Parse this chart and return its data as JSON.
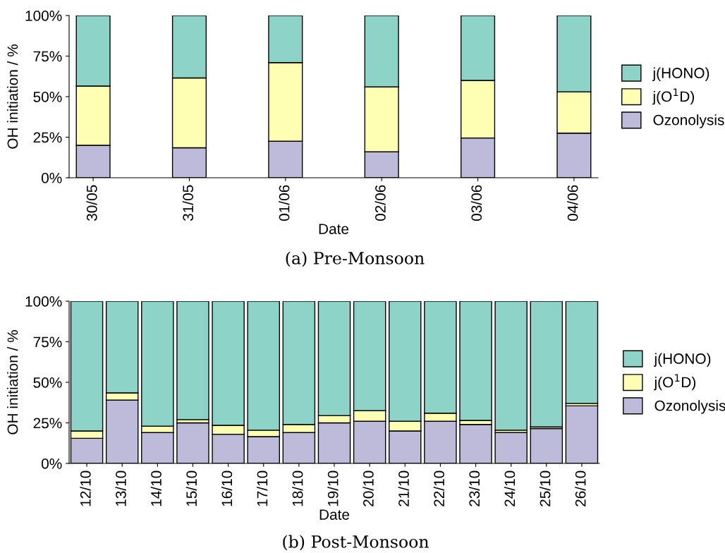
{
  "chart_data": [
    {
      "type": "bar",
      "stacked": true,
      "xlabel": "Date",
      "ylabel": "OH initiation / %",
      "categories": [
        "30/05",
        "31/05",
        "01/06",
        "02/06",
        "03/06",
        "04/06"
      ],
      "series": [
        {
          "name": "Ozonolysis",
          "color": "#bebada",
          "values": [
            20,
            18.5,
            22.5,
            16,
            24.5,
            27.5
          ]
        },
        {
          "name": "j(O$^{1}$D)",
          "color": "#ffffb3",
          "values": [
            36.5,
            43,
            48.5,
            40,
            35.5,
            25.5
          ]
        },
        {
          "name": "j(HONO)",
          "color": "#8dd3c7",
          "values": [
            43.5,
            38.5,
            29,
            44,
            40,
            47
          ]
        }
      ],
      "ylim": [
        0,
        100
      ],
      "yticks": [
        {
          "value": 0,
          "label": "0%"
        },
        {
          "value": 25,
          "label": "25%"
        },
        {
          "value": 50,
          "label": "50%"
        },
        {
          "value": 75,
          "label": "75%"
        },
        {
          "value": 100,
          "label": "100%"
        }
      ],
      "grid": false,
      "legend": "right",
      "annotations": [
        "(a) Pre-Monsoon"
      ]
    },
    {
      "type": "bar",
      "stacked": true,
      "xlabel": "Date",
      "ylabel": "OH initiation / %",
      "categories": [
        "12/10",
        "13/10",
        "14/10",
        "15/10",
        "16/10",
        "17/10",
        "18/10",
        "19/10",
        "20/10",
        "21/10",
        "22/10",
        "23/10",
        "24/10",
        "25/10",
        "26/10"
      ],
      "series": [
        {
          "name": "Ozonolysis",
          "color": "#bebada",
          "values": [
            15.5,
            39,
            19,
            25,
            18,
            16.5,
            19,
            25,
            26,
            20,
            26,
            24,
            19,
            21.5,
            35.5
          ]
        },
        {
          "name": "j(O$^{1}$D)",
          "color": "#ffffb3",
          "values": [
            4.5,
            4.5,
            4,
            2,
            5.5,
            4,
            5,
            4.5,
            6.5,
            6,
            5,
            2.5,
            1.5,
            1,
            1.5
          ]
        },
        {
          "name": "j(HONO)",
          "color": "#8dd3c7",
          "values": [
            80,
            56.5,
            77,
            73,
            76.5,
            79.5,
            76,
            70.5,
            67.5,
            74,
            69,
            73.5,
            79.5,
            77.5,
            63
          ]
        }
      ],
      "ylim": [
        0,
        100
      ],
      "yticks": [
        {
          "value": 0,
          "label": "0%"
        },
        {
          "value": 25,
          "label": "25%"
        },
        {
          "value": 50,
          "label": "50%"
        },
        {
          "value": 75,
          "label": "75%"
        },
        {
          "value": 100,
          "label": "100%"
        }
      ],
      "grid": false,
      "legend": "right",
      "annotations": [
        "(b) Post-Monsoon"
      ]
    }
  ]
}
